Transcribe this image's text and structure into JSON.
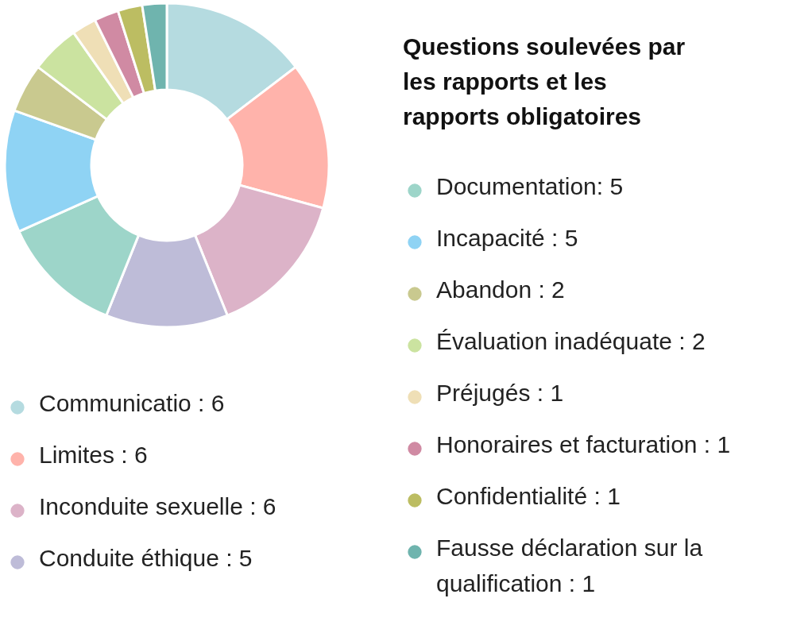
{
  "chart_data": {
    "type": "donut",
    "title": "Questions soulevées par les rapports et les rapports obligatoires",
    "categories": [
      "Communicatio : 6",
      "Limites :  6",
      "Inconduite sexuelle : 6",
      "Conduite éthique : 5",
      "Documentation: 5",
      "Incapacité : 5",
      "Abandon : 2",
      "Évaluation inadéquate : 2",
      "Préjugés : 1",
      "Honoraires et facturation :  1",
      "Confidentialité : 1",
      "Fausse déclaration sur la qualification : 1"
    ],
    "values": [
      6,
      6,
      6,
      5,
      5,
      5,
      2,
      2,
      1,
      1,
      1,
      1
    ],
    "colors": [
      "#b5dbe0",
      "#ffb3ab",
      "#dcb3c8",
      "#bebcd8",
      "#9dd5c9",
      "#8fd3f4",
      "#c9c98f",
      "#cbe3a0",
      "#efdfb6",
      "#d08aa3",
      "#bcbd62",
      "#6fb4ae"
    ],
    "legend": "right"
  }
}
